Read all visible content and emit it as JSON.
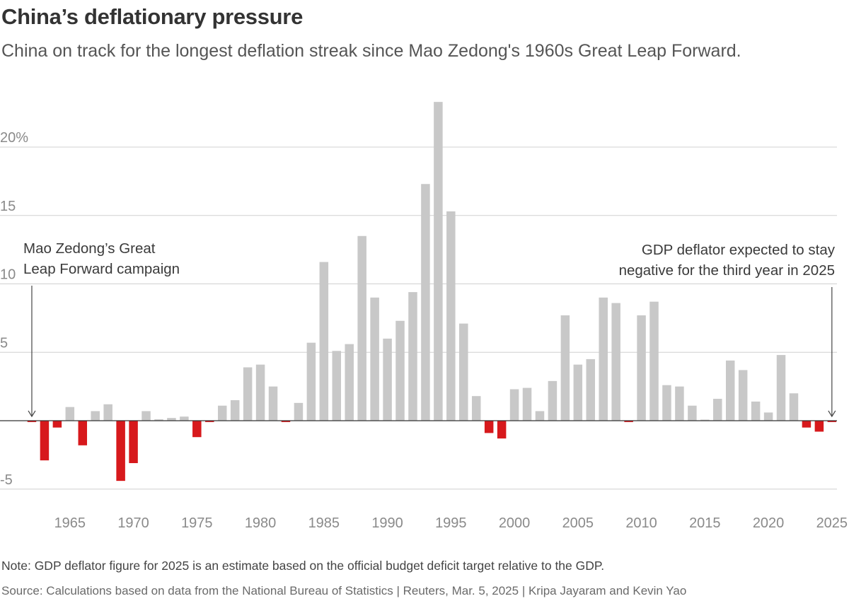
{
  "header": {
    "title": "China’s deflationary pressure",
    "subtitle": "China on track for the longest deflation streak since Mao Zedong's 1960s Great Leap Forward."
  },
  "footer": {
    "note": "Note: GDP deflator figure for 2025 is an estimate based on the official budget deficit target relative to the GDP.",
    "source": "Source: Calculations based on data from the National Bureau of Statistics | Reuters, Mar. 5, 2025 | Kripa Jayaram and Kevin Yao"
  },
  "colors": {
    "positive": "#c8c8c8",
    "negative": "#d7191c",
    "grid": "#d0d0d0",
    "axis": "#333333"
  },
  "chart_data": {
    "type": "bar",
    "title": "China’s deflationary pressure",
    "xlabel": "",
    "ylabel": "",
    "ylim": [
      -6,
      24
    ],
    "xlim": [
      1961.5,
      2025.5
    ],
    "grid": true,
    "y_ticks": [
      {
        "value": 20,
        "label": "20%"
      },
      {
        "value": 15,
        "label": "15"
      },
      {
        "value": 10,
        "label": "10"
      },
      {
        "value": 5,
        "label": "5"
      },
      {
        "value": -5,
        "label": "-5"
      }
    ],
    "x_ticks": [
      1965,
      1970,
      1975,
      1980,
      1985,
      1990,
      1995,
      2000,
      2005,
      2010,
      2015,
      2020,
      2025
    ],
    "x": [
      1962,
      1963,
      1964,
      1965,
      1966,
      1967,
      1968,
      1969,
      1970,
      1971,
      1972,
      1973,
      1974,
      1975,
      1976,
      1977,
      1978,
      1979,
      1980,
      1981,
      1982,
      1983,
      1984,
      1985,
      1986,
      1987,
      1988,
      1989,
      1990,
      1991,
      1992,
      1993,
      1994,
      1995,
      1996,
      1997,
      1998,
      1999,
      2000,
      2001,
      2002,
      2003,
      2004,
      2005,
      2006,
      2007,
      2008,
      2009,
      2010,
      2011,
      2012,
      2013,
      2014,
      2015,
      2016,
      2017,
      2018,
      2019,
      2020,
      2021,
      2022,
      2023,
      2024,
      2025
    ],
    "values": [
      -0.1,
      -2.9,
      -0.5,
      1.0,
      -1.8,
      0.7,
      1.2,
      -4.4,
      -3.1,
      0.7,
      0.1,
      0.2,
      0.3,
      -1.2,
      -0.1,
      1.1,
      1.5,
      3.9,
      4.1,
      2.5,
      -0.1,
      1.3,
      5.7,
      11.6,
      5.1,
      5.6,
      13.5,
      9.0,
      6.0,
      7.3,
      9.4,
      17.3,
      23.3,
      15.3,
      7.1,
      1.8,
      -0.9,
      -1.3,
      2.3,
      2.4,
      0.7,
      2.9,
      7.7,
      4.1,
      4.5,
      9.0,
      8.6,
      -0.1,
      7.7,
      8.7,
      2.6,
      2.5,
      1.1,
      0.05,
      1.6,
      4.4,
      3.7,
      1.4,
      0.6,
      4.8,
      2.0,
      -0.5,
      -0.8,
      -0.1
    ],
    "annotations": [
      {
        "lines": [
          "Mao Zedong’s Great",
          "Leap Forward campaign"
        ],
        "target_year": 1962,
        "target_value": -0.1,
        "align": "left"
      },
      {
        "lines": [
          "GDP deflator expected to stay",
          "negative for the third year in 2025"
        ],
        "target_year": 2025,
        "target_value": -0.1,
        "align": "right"
      }
    ]
  }
}
